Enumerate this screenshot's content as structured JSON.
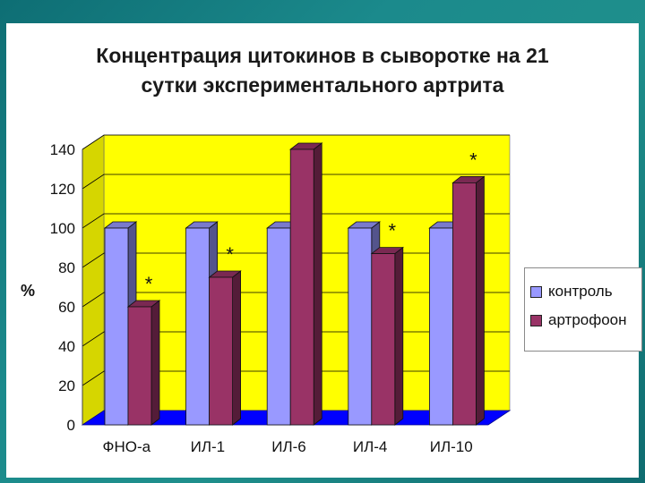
{
  "slide": {
    "title_line1": "Концентрация цитокинов в сыворотке на 21",
    "title_line2": "сутки экспериментального артрита"
  },
  "chart_data": {
    "type": "bar",
    "title": "Концентрация цитокинов в сыворотке на 21 сутки экспериментального артрита",
    "xlabel": "",
    "ylabel": "%",
    "categories": [
      "ФНО-а",
      "ИЛ-1",
      "ИЛ-6",
      "ИЛ-4",
      "ИЛ-10"
    ],
    "series": [
      {
        "name": "контроль",
        "values": [
          100,
          100,
          100,
          100,
          100
        ],
        "color": "#9999ff"
      },
      {
        "name": "артрофоон",
        "values": [
          60,
          75,
          140,
          87,
          123
        ],
        "color": "#993366"
      }
    ],
    "annotations": [
      {
        "category": "ФНО-а",
        "series": "артрофоон",
        "text": "*"
      },
      {
        "category": "ИЛ-1",
        "series": "артрофоон",
        "text": "*"
      },
      {
        "category": "ИЛ-4",
        "series": "артрофоон",
        "text": "*"
      },
      {
        "category": "ИЛ-10",
        "series": "артрофоон",
        "text": "*"
      }
    ],
    "ylim": [
      0,
      140
    ],
    "yticks": [
      0,
      20,
      40,
      60,
      80,
      100,
      120,
      140
    ],
    "grid": true,
    "legend_position": "right",
    "colors": {
      "wall": "#ffff00",
      "floor": "#0000ff",
      "gridline": "#000000"
    }
  }
}
